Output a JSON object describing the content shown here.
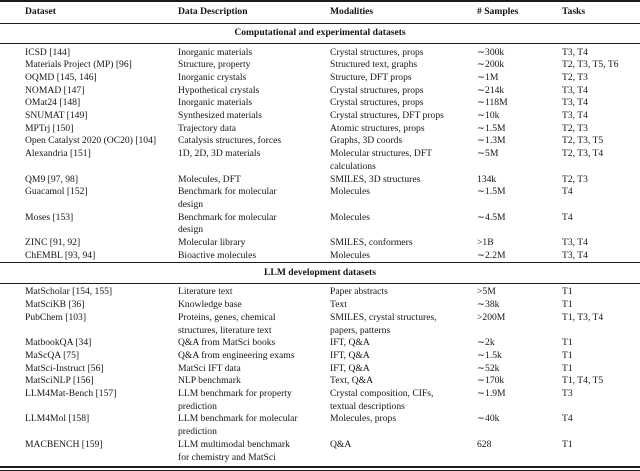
{
  "colors": {
    "background": "#ffffff",
    "text": "#151515",
    "rule": "#1c1c1c"
  },
  "table": {
    "columns": [
      "Dataset",
      "Data Description",
      "Modalities",
      "# Samples",
      "Tasks"
    ],
    "column_keys": [
      "dataset",
      "description",
      "modalities",
      "samples",
      "tasks"
    ],
    "sections": [
      {
        "title": "Computational and experimental datasets",
        "rows": [
          {
            "dataset": "ICSD [144]",
            "description": "Inorganic materials",
            "modalities": "Crystal structures, props",
            "samples": "∼300k",
            "tasks": "T3, T4"
          },
          {
            "dataset": "Materials Project (MP) [96]",
            "description": "Structure, property",
            "modalities": "Structured text, graphs",
            "samples": "∼200k",
            "tasks": "T2, T3, T5, T6"
          },
          {
            "dataset": "OQMD [145, 146]",
            "description": "Inorganic crystals",
            "modalities": "Structure, DFT props",
            "samples": "∼1M",
            "tasks": "T2, T3"
          },
          {
            "dataset": "NOMAD [147]",
            "description": "Hypothetical crystals",
            "modalities": "Crystal structures, props",
            "samples": "∼214k",
            "tasks": "T3, T4"
          },
          {
            "dataset": "OMat24 [148]",
            "description": "Inorganic materials",
            "modalities": "Crystal structures, props",
            "samples": "∼118M",
            "tasks": "T3, T4"
          },
          {
            "dataset": "SNUMAT [149]",
            "description": "Synthesized materials",
            "modalities": "Crystal structures, DFT props",
            "samples": "∼10k",
            "tasks": "T3, T4"
          },
          {
            "dataset": "MPTrj [150]",
            "description": "Trajectory data",
            "modalities": "Atomic structures, props",
            "samples": "∼1.5M",
            "tasks": "T2, T3"
          },
          {
            "dataset": "Open Catalyst 2020 (OC20) [104]",
            "description": "Catalysis structures, forces",
            "modalities": "Graphs, 3D coords",
            "samples": "∼1.3M",
            "tasks": "T2, T3, T5"
          },
          {
            "dataset": "Alexandria [151]",
            "description": "1D, 2D, 3D materials",
            "modalities": "Molecular structures, DFT\ncalculations",
            "samples": "∼5M",
            "tasks": "T2, T3, T4"
          },
          {
            "dataset": "QM9 [97, 98]",
            "description": "Molecules, DFT",
            "modalities": "SMILES, 3D structures",
            "samples": "134k",
            "tasks": "T2, T3"
          },
          {
            "dataset": "Guacamol [152]",
            "description": "Benchmark for molecular\ndesign",
            "modalities": "Molecules",
            "samples": "∼1.5M",
            "tasks": "T4"
          },
          {
            "dataset": "Moses [153]",
            "description": "Benchmark for molecular\ndesign",
            "modalities": "Molecules",
            "samples": "∼4.5M",
            "tasks": "T4"
          },
          {
            "dataset": "ZINC [91, 92]",
            "description": "Molecular library",
            "modalities": "SMILES, conformers",
            "samples": ">1B",
            "tasks": "T3, T4"
          },
          {
            "dataset": "ChEMBL [93, 94]",
            "description": "Bioactive molecules",
            "modalities": "Molecules",
            "samples": "∼2.2M",
            "tasks": "T3, T4"
          }
        ]
      },
      {
        "title": "LLM development datasets",
        "rows": [
          {
            "dataset": "MatScholar [154, 155]",
            "description": "Literature text",
            "modalities": "Paper abstracts",
            "samples": ">5M",
            "tasks": "T1"
          },
          {
            "dataset": "MatSciKB [36]",
            "description": "Knowledge base",
            "modalities": "Text",
            "samples": "∼38k",
            "tasks": "T1"
          },
          {
            "dataset": "PubChem [103]",
            "description": "Proteins, genes, chemical\nstructures, literature text",
            "modalities": "SMILES, crystal structures,\npapers, patterns",
            "samples": ">200M",
            "tasks": "T1, T3, T4"
          },
          {
            "dataset": "MatbookQA [34]",
            "description": "Q&A from MatSci books",
            "modalities": "IFT, Q&A",
            "samples": "∼2k",
            "tasks": "T1"
          },
          {
            "dataset": "MaScQA [75]",
            "description": "Q&A from engineering exams",
            "modalities": "IFT, Q&A",
            "samples": "∼1.5k",
            "tasks": "T1"
          },
          {
            "dataset": "MatSci-Instruct [56]",
            "description": "MatSci IFT data",
            "modalities": "IFT, Q&A",
            "samples": "∼52k",
            "tasks": "T1"
          },
          {
            "dataset": "MatSciNLP [156]",
            "description": "NLP benchmark",
            "modalities": "Text, Q&A",
            "samples": "∼170k",
            "tasks": "T1, T4, T5"
          },
          {
            "dataset": "LLM4Mat-Bench [157]",
            "description": "LLM benchmark for property\nprediction",
            "modalities": "Crystal composition, CIFs,\ntextual descriptions",
            "samples": "∼1.9M",
            "tasks": "T3"
          },
          {
            "dataset": "LLM4Mol [158]",
            "description": "LLM benchmark for molecular\nprediction",
            "modalities": "Molecules, props",
            "samples": "∼40k",
            "tasks": "T4"
          },
          {
            "dataset": "MACBENCH [159]",
            "description": "LLM multimodal benchmark\nfor chemistry and MatSci",
            "modalities": "Q&A",
            "samples": "628",
            "tasks": "T1"
          }
        ]
      }
    ]
  }
}
